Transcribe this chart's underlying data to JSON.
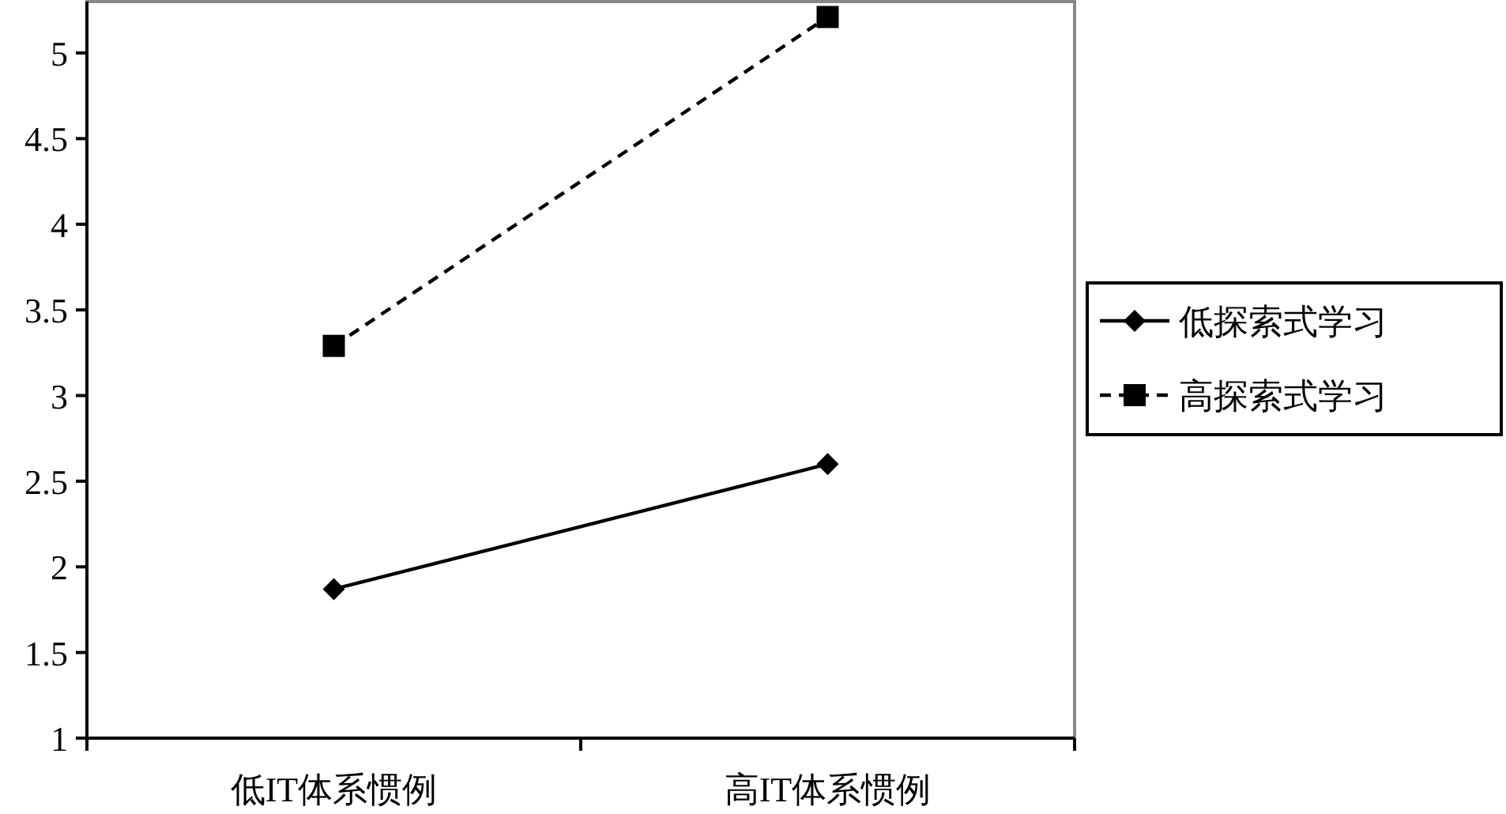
{
  "chart_data": {
    "type": "line",
    "categories": [
      "低IT体系惯例",
      "高IT体系惯例"
    ],
    "series": [
      {
        "name": "低探索式学习",
        "color": "#000000",
        "values": [
          1.87,
          2.6
        ],
        "marker": "diamond",
        "line_style": "solid"
      },
      {
        "name": "高探索式学习",
        "color": "#000000",
        "values": [
          3.29,
          5.21
        ],
        "marker": "square",
        "line_style": "dashed"
      }
    ],
    "ylim": [
      1,
      5.3
    ],
    "yticks": [
      1,
      1.5,
      2,
      2.5,
      3,
      3.5,
      4,
      4.5,
      5
    ],
    "grid": false,
    "legend": "right"
  }
}
